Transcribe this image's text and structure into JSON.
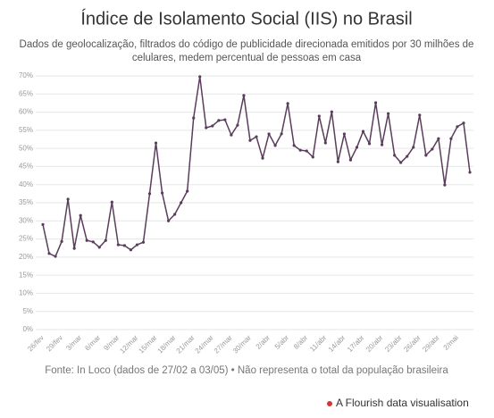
{
  "chart_data": {
    "type": "line",
    "title": "Índice de Isolamento Social (IIS) no Brasil",
    "subtitle": [
      "Dados de geolocalização, filtrados do código de publicidade direcionada emitidos por 30 milhões de",
      "celulares, medem percentual de pessoas em casa"
    ],
    "source": "Fonte: In Loco (dados de 27/02 a 03/05) • Não representa o total da população brasileira",
    "credit": "A Flourish data visualisation",
    "color": "#5a3d5c",
    "grid": true,
    "categories": [
      "26/fev",
      null,
      null,
      "29/fev",
      null,
      null,
      "3/mar",
      null,
      null,
      "6/mar",
      null,
      null,
      "9/mar",
      null,
      null,
      "12/mar",
      null,
      null,
      "15/mar",
      null,
      null,
      "18/mar",
      null,
      null,
      "21/mar",
      null,
      null,
      "24/mar",
      null,
      null,
      "27/mar",
      null,
      null,
      "30/mar",
      null,
      null,
      "2/abr",
      null,
      null,
      "5/abr",
      null,
      null,
      "8/abr",
      null,
      null,
      "11/abr",
      null,
      null,
      "14/abr",
      null,
      null,
      "17/abr",
      null,
      null,
      "20/abr",
      null,
      null,
      "23/abr",
      null,
      null,
      "26/abr",
      null,
      null,
      "29/abr",
      null,
      null,
      "2/mai",
      null,
      null
    ],
    "values": [
      29,
      21,
      20.2,
      24.3,
      36,
      22.4,
      31.5,
      24.6,
      24.2,
      22.7,
      24.6,
      35.2,
      23.4,
      23.2,
      22,
      23.4,
      24.1,
      37.5,
      51.5,
      37.7,
      30,
      31.8,
      35,
      38.2,
      58.4,
      69.8,
      55.7,
      56.2,
      57.7,
      57.9,
      53.7,
      56.4,
      64.6,
      52.2,
      53.2,
      47.3,
      54,
      50.8,
      54,
      62.4,
      50.8,
      49.5,
      49.3,
      47.6,
      58.9,
      51.5,
      60.1,
      46.3,
      54,
      46.8,
      50.3,
      54.7,
      51.3,
      62.6,
      51,
      59.6,
      48.1,
      46.1,
      47.8,
      50.3,
      59.2,
      48.1,
      49.8,
      52.7,
      39.9,
      52.7,
      56,
      57,
      43.4
    ],
    "ylim": [
      0,
      70
    ],
    "yticks": [
      {
        "value": 0,
        "label": "0%"
      },
      {
        "value": 5,
        "label": "5%"
      },
      {
        "value": 10,
        "label": "10%"
      },
      {
        "value": 15,
        "label": "15%"
      },
      {
        "value": 20,
        "label": "20%"
      },
      {
        "value": 25,
        "label": "25%"
      },
      {
        "value": 30,
        "label": "30%"
      },
      {
        "value": 35,
        "label": "35%"
      },
      {
        "value": 40,
        "label": "40%"
      },
      {
        "value": 45,
        "label": "45%"
      },
      {
        "value": 50,
        "label": "50%"
      },
      {
        "value": 55,
        "label": "55%"
      },
      {
        "value": 60,
        "label": "60%"
      },
      {
        "value": 65,
        "label": "65%"
      },
      {
        "value": 70,
        "label": "70%"
      }
    ]
  }
}
